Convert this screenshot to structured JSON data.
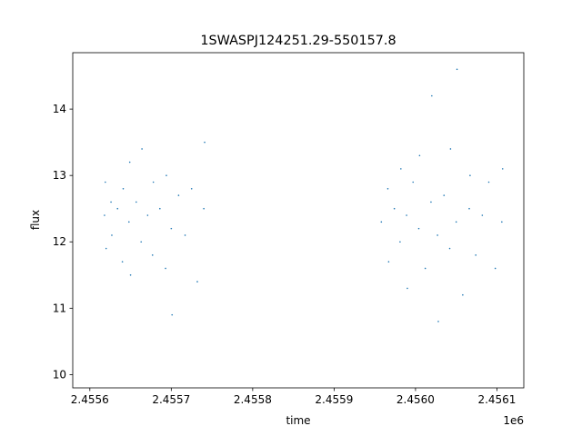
{
  "chart_data": {
    "type": "scatter",
    "title": "1SWASPJ124251.29-550157.8",
    "xlabel": "time",
    "ylabel": "flux",
    "x_offset_label": "1e6",
    "xlim": [
      2455579,
      2456133
    ],
    "ylim": [
      9.8,
      14.85
    ],
    "x_ticks": [
      2455600,
      2455700,
      2455800,
      2455900,
      2456000,
      2456100
    ],
    "x_tick_labels": [
      "2.4556",
      "2.4557",
      "2.4558",
      "2.4559",
      "2.4560",
      "2.4561"
    ],
    "y_ticks": [
      10,
      11,
      12,
      13,
      14
    ],
    "y_tick_labels": [
      "10",
      "11",
      "12",
      "13",
      "14"
    ],
    "grid": false,
    "marker_color": "#1f77b4",
    "series": [
      {
        "values": [
          {
            "x": 2455618,
            "y": 12.4
          },
          {
            "x": 2455619,
            "y": 12.9
          },
          {
            "x": 2455620,
            "y": 11.9
          },
          {
            "x": 2455626,
            "y": 12.6
          },
          {
            "x": 2455627,
            "y": 12.1
          },
          {
            "x": 2455634,
            "y": 12.5
          },
          {
            "x": 2455640,
            "y": 11.7
          },
          {
            "x": 2455641,
            "y": 12.8
          },
          {
            "x": 2455648,
            "y": 12.3
          },
          {
            "x": 2455649,
            "y": 13.2
          },
          {
            "x": 2455650,
            "y": 11.5
          },
          {
            "x": 2455657,
            "y": 12.6
          },
          {
            "x": 2455663,
            "y": 12.0
          },
          {
            "x": 2455664,
            "y": 13.4
          },
          {
            "x": 2455671,
            "y": 12.4
          },
          {
            "x": 2455677,
            "y": 11.8
          },
          {
            "x": 2455678,
            "y": 12.9
          },
          {
            "x": 2455686,
            "y": 12.5
          },
          {
            "x": 2455693,
            "y": 11.6
          },
          {
            "x": 2455694,
            "y": 13.0
          },
          {
            "x": 2455700,
            "y": 12.2
          },
          {
            "x": 2455701,
            "y": 10.9
          },
          {
            "x": 2455709,
            "y": 12.7
          },
          {
            "x": 2455717,
            "y": 12.1
          },
          {
            "x": 2455725,
            "y": 12.8
          },
          {
            "x": 2455732,
            "y": 11.4
          },
          {
            "x": 2455740,
            "y": 12.5
          },
          {
            "x": 2455741,
            "y": 13.5
          },
          {
            "x": 2455958,
            "y": 12.3
          },
          {
            "x": 2455966,
            "y": 12.8
          },
          {
            "x": 2455967,
            "y": 11.7
          },
          {
            "x": 2455974,
            "y": 12.5
          },
          {
            "x": 2455981,
            "y": 12.0
          },
          {
            "x": 2455982,
            "y": 13.1
          },
          {
            "x": 2455989,
            "y": 12.4
          },
          {
            "x": 2455990,
            "y": 11.3
          },
          {
            "x": 2455997,
            "y": 12.9
          },
          {
            "x": 2456004,
            "y": 12.2
          },
          {
            "x": 2456005,
            "y": 13.3
          },
          {
            "x": 2456012,
            "y": 11.6
          },
          {
            "x": 2456019,
            "y": 12.6
          },
          {
            "x": 2456020,
            "y": 14.2
          },
          {
            "x": 2456027,
            "y": 12.1
          },
          {
            "x": 2456028,
            "y": 10.8
          },
          {
            "x": 2456035,
            "y": 12.7
          },
          {
            "x": 2456042,
            "y": 11.9
          },
          {
            "x": 2456043,
            "y": 13.4
          },
          {
            "x": 2456050,
            "y": 12.3
          },
          {
            "x": 2456051,
            "y": 14.6
          },
          {
            "x": 2456058,
            "y": 11.2
          },
          {
            "x": 2456066,
            "y": 12.5
          },
          {
            "x": 2456067,
            "y": 13.0
          },
          {
            "x": 2456074,
            "y": 11.8
          },
          {
            "x": 2456082,
            "y": 12.4
          },
          {
            "x": 2456090,
            "y": 12.9
          },
          {
            "x": 2456098,
            "y": 11.6
          },
          {
            "x": 2456106,
            "y": 12.3
          },
          {
            "x": 2456107,
            "y": 13.1
          }
        ]
      }
    ]
  }
}
